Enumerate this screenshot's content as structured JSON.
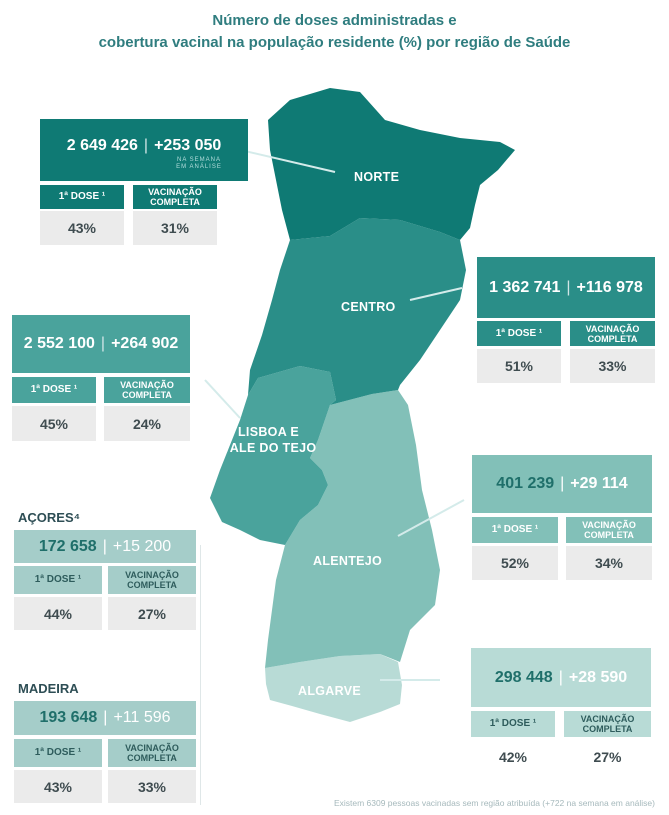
{
  "title": {
    "line1": "Número de doses administradas e",
    "line2": "cobertura vacinal na população residente (%) por região de Saúde"
  },
  "colors": {
    "norte": "#0f7a74",
    "centro": "#2a8e88",
    "lisboa": "#4aa39c",
    "alentejo": "#82c0b8",
    "algarve": "#b8dbd6",
    "ilhas": "#a5cdc9"
  },
  "regions": {
    "norte": {
      "name": "NORTE",
      "total": "2 649 426",
      "delta": "+253 050",
      "week_note_1": "NA SEMANA",
      "week_note_2": "EM ANÁLISE",
      "dose1_label": "1ª DOSE ¹",
      "complete_label_1": "VACINAÇÃO",
      "complete_label_2": "COMPLETA",
      "dose1_pct": "43%",
      "complete_pct": "31%"
    },
    "centro": {
      "name": "CENTRO",
      "total": "1 362 741",
      "delta": "+116 978",
      "dose1_label": "1ª DOSE ¹",
      "complete_label_1": "VACINAÇÃO",
      "complete_label_2": "COMPLETA",
      "dose1_pct": "51%",
      "complete_pct": "33%"
    },
    "lisboa": {
      "name_1": "LISBOA E",
      "name_2": "VALE DO TEJO",
      "total": "2 552 100",
      "delta": "+264 902",
      "dose1_label": "1ª DOSE ¹",
      "complete_label_1": "VACINAÇÃO",
      "complete_label_2": "COMPLETA",
      "dose1_pct": "45%",
      "complete_pct": "24%"
    },
    "alentejo": {
      "name": "ALENTEJO",
      "total": "401 239",
      "delta": "+29 114",
      "dose1_label": "1ª DOSE ¹",
      "complete_label_1": "VACINAÇÃO",
      "complete_label_2": "COMPLETA",
      "dose1_pct": "52%",
      "complete_pct": "34%"
    },
    "algarve": {
      "name": "ALGARVE",
      "total": "298 448",
      "delta": "+28 590",
      "dose1_label": "1ª DOSE ¹",
      "complete_label_1": "VACINAÇÃO",
      "complete_label_2": "COMPLETA",
      "dose1_pct": "42%",
      "complete_pct": "27%"
    },
    "acores": {
      "name": "AÇORES⁴",
      "total": "172 658",
      "delta": "+15 200",
      "dose1_label": "1ª DOSE ¹",
      "complete_label_1": "VACINAÇÃO",
      "complete_label_2": "COMPLETA",
      "dose1_pct": "44%",
      "complete_pct": "27%"
    },
    "madeira": {
      "name": "MADEIRA",
      "total": "193 648",
      "delta": "+11 596",
      "dose1_label": "1ª DOSE ¹",
      "complete_label_1": "VACINAÇÃO",
      "complete_label_2": "COMPLETA",
      "dose1_pct": "43%",
      "complete_pct": "33%"
    }
  },
  "footer": "Existem 6309 pessoas vacinadas sem região atribuída (+722 na semana em análise)"
}
